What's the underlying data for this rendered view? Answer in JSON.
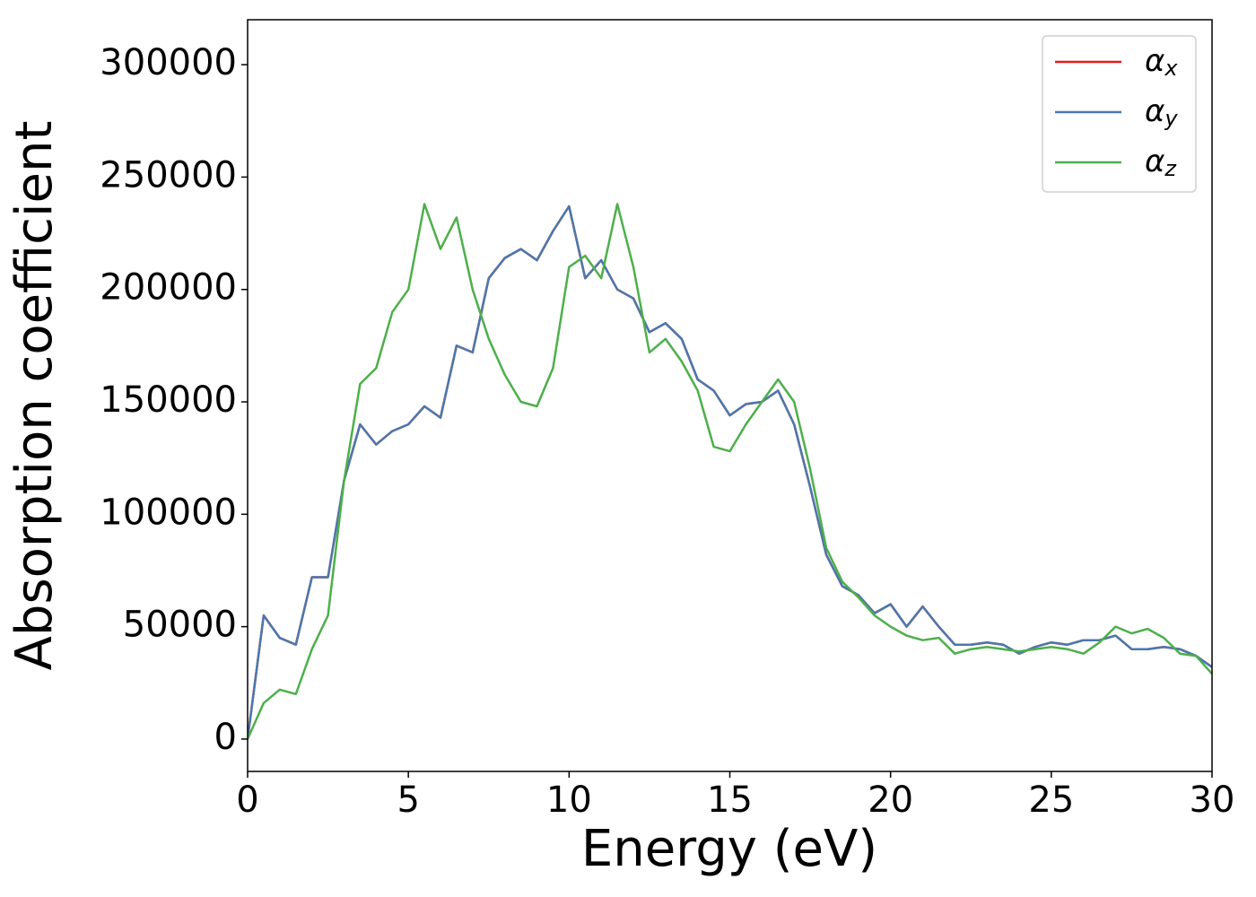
{
  "chart_data": {
    "type": "line",
    "xlabel": "Energy (eV)",
    "ylabel": "Absorption coefficient",
    "x": [
      0,
      0.5,
      1,
      1.5,
      2,
      2.5,
      3,
      3.5,
      4,
      4.5,
      5,
      5.5,
      6,
      6.5,
      7,
      7.5,
      8,
      8.5,
      9,
      9.5,
      10,
      10.5,
      11,
      11.5,
      12,
      12.5,
      13,
      13.5,
      14,
      14.5,
      15,
      15.5,
      16,
      16.5,
      17,
      17.5,
      18,
      18.5,
      19,
      19.5,
      20,
      20.5,
      21,
      21.5,
      22,
      22.5,
      23,
      23.5,
      24,
      24.5,
      25,
      25.5,
      26,
      26.5,
      27,
      27.5,
      28,
      28.5,
      29,
      29.5,
      30
    ],
    "series": [
      {
        "name": "αx",
        "color": "#e41a1c",
        "values": [
          0,
          55000,
          45000,
          42000,
          72000,
          72000,
          115000,
          140000,
          131000,
          137000,
          140000,
          148000,
          143000,
          175000,
          172000,
          205000,
          214000,
          218000,
          213000,
          226000,
          237000,
          205000,
          213000,
          200000,
          196000,
          181000,
          185000,
          178000,
          160000,
          155000,
          144000,
          149000,
          150000,
          155000,
          140000,
          112000,
          82000,
          68000,
          64000,
          56000,
          60000,
          50000,
          59000,
          50000,
          42000,
          42000,
          43000,
          42000,
          38000,
          41000,
          43000,
          42000,
          44000,
          44000,
          46000,
          40000,
          40000,
          41000,
          40000,
          37000,
          32000
        ]
      },
      {
        "name": "αy",
        "color": "#4a78ad",
        "values": [
          0,
          55000,
          45000,
          42000,
          72000,
          72000,
          115000,
          140000,
          131000,
          137000,
          140000,
          148000,
          143000,
          175000,
          172000,
          205000,
          214000,
          218000,
          213000,
          226000,
          237000,
          205000,
          213000,
          200000,
          196000,
          181000,
          185000,
          178000,
          160000,
          155000,
          144000,
          149000,
          150000,
          155000,
          140000,
          112000,
          82000,
          68000,
          64000,
          56000,
          60000,
          50000,
          59000,
          50000,
          42000,
          42000,
          43000,
          42000,
          38000,
          41000,
          43000,
          42000,
          44000,
          44000,
          46000,
          40000,
          40000,
          41000,
          40000,
          37000,
          32000
        ]
      },
      {
        "name": "αz",
        "color": "#4daf4a",
        "values": [
          0,
          16000,
          22000,
          20000,
          40000,
          55000,
          115000,
          158000,
          165000,
          190000,
          200000,
          238000,
          218000,
          232000,
          200000,
          178000,
          162000,
          150000,
          148000,
          165000,
          210000,
          215000,
          205000,
          238000,
          210000,
          172000,
          178000,
          168000,
          155000,
          130000,
          128000,
          140000,
          150000,
          160000,
          150000,
          120000,
          85000,
          70000,
          63000,
          55000,
          50000,
          46000,
          44000,
          45000,
          38000,
          40000,
          41000,
          40000,
          39000,
          40000,
          41000,
          40000,
          38000,
          43000,
          50000,
          47000,
          49000,
          45000,
          38000,
          37000,
          29000
        ]
      }
    ],
    "xlim": [
      0,
      30
    ],
    "xticks": [
      0,
      5,
      10,
      15,
      20,
      25,
      30
    ],
    "ylim": [
      -14400,
      320000
    ],
    "yticks": [
      0,
      50000,
      100000,
      150000,
      200000,
      250000,
      300000
    ],
    "legend": "upper right"
  }
}
